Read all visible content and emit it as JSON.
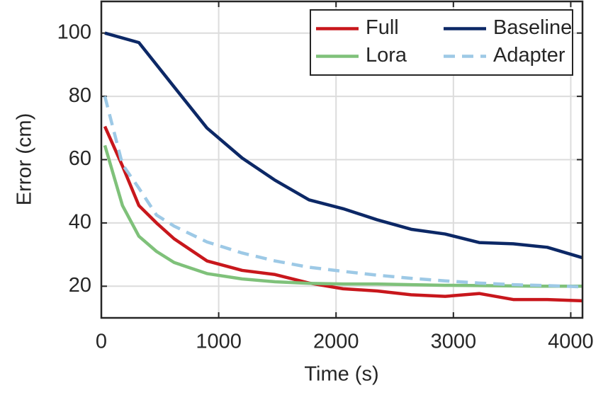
{
  "chart_data": {
    "type": "line",
    "xlabel": "Time (s)",
    "ylabel": "Error (cm)",
    "xlim": [
      0,
      4100
    ],
    "xticks": [
      0,
      1000,
      2000,
      3000,
      4000
    ],
    "ylim": [
      10,
      110
    ],
    "yticks": [
      20,
      40,
      60,
      80,
      100
    ],
    "grid": true,
    "legend": "upper right",
    "legend_columns": 2,
    "series": [
      {
        "name": "Full",
        "color": "#c8171c",
        "style": "solid",
        "x": [
          30,
          180,
          320,
          470,
          620,
          900,
          1200,
          1480,
          1770,
          2060,
          2350,
          2640,
          2930,
          3220,
          3510,
          3800,
          4100
        ],
        "values": [
          70.5,
          58,
          45.5,
          40,
          35,
          28,
          25,
          23.7,
          21,
          19.2,
          18.5,
          17.3,
          16.8,
          17.7,
          15.8,
          15.8,
          15.4
        ]
      },
      {
        "name": "Baseline",
        "color": "#0c2866",
        "style": "solid",
        "x": [
          30,
          320,
          620,
          900,
          1200,
          1480,
          1770,
          2060,
          2350,
          2640,
          2930,
          3220,
          3510,
          3800,
          4100
        ],
        "values": [
          100,
          97,
          83,
          70,
          60.5,
          53.5,
          47.3,
          44.5,
          41,
          38,
          36.5,
          33.8,
          33.4,
          32.3,
          29
        ]
      },
      {
        "name": "Lora",
        "color": "#7fc17a",
        "style": "solid",
        "x": [
          30,
          180,
          320,
          470,
          620,
          900,
          1200,
          1480,
          1770,
          2060,
          2350,
          2640,
          2930,
          3220,
          3510,
          3800,
          4100
        ],
        "values": [
          64.5,
          45.5,
          35.8,
          31,
          27.5,
          24,
          22.3,
          21.4,
          20.9,
          20.7,
          20.7,
          20.5,
          20.3,
          20.2,
          20.1,
          20,
          20
        ]
      },
      {
        "name": "Adapter",
        "color": "#9dc9e6",
        "style": "dashed",
        "x": [
          30,
          180,
          320,
          470,
          620,
          900,
          1200,
          1480,
          1770,
          2060,
          2350,
          2640,
          2930,
          3220,
          3510,
          3800,
          4100
        ],
        "values": [
          80,
          58.5,
          51,
          42.5,
          39,
          34,
          30.5,
          28,
          26,
          24.7,
          23.5,
          22.5,
          21.7,
          21,
          20.5,
          20.2,
          19.8
        ]
      }
    ]
  }
}
